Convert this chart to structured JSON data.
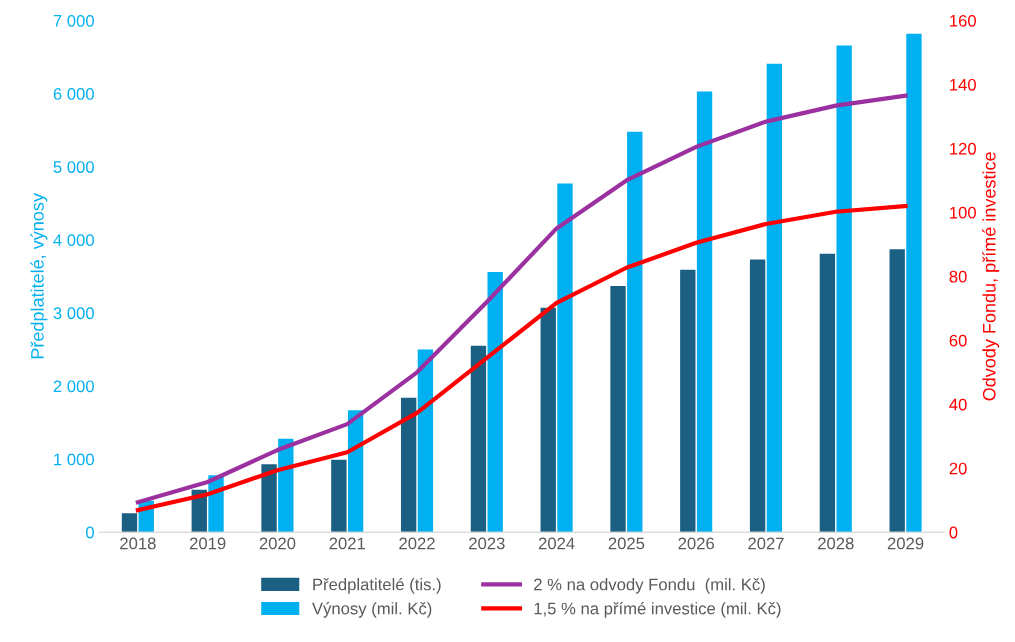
{
  "chart_data": {
    "type": "bar",
    "categories": [
      "2018",
      "2019",
      "2020",
      "2021",
      "2022",
      "2023",
      "2024",
      "2025",
      "2026",
      "2027",
      "2028",
      "2029"
    ],
    "series": [
      {
        "name": "Předplatitelé (tis.)",
        "color": "#1b6083",
        "values": [
          260,
          580,
          930,
          990,
          1840,
          2550,
          3070,
          3370,
          3590,
          3730,
          3810,
          3870
        ]
      },
      {
        "name": "Výnosy (mil. Kč)",
        "color": "#00b0f0",
        "values": [
          430,
          780,
          1280,
          1670,
          2500,
          3560,
          4770,
          5480,
          6030,
          6410,
          6660,
          6820
        ]
      },
      {
        "name": "2 % na odvody Fondu  (mil. Kč)",
        "type": "line",
        "axis": "y2",
        "color": "#9b30a0",
        "values": [
          9.4,
          15.7,
          25.7,
          33.8,
          50,
          72,
          95,
          110,
          120.5,
          128.4,
          133.4,
          136.5
        ]
      },
      {
        "name": "1,5 % na přímé investice (mil. Kč)",
        "type": "line",
        "axis": "y2",
        "color": "#ff0000",
        "values": [
          6.9,
          11.9,
          19.4,
          25,
          37.3,
          54.5,
          71.7,
          82.7,
          90.5,
          96.4,
          100.2,
          102
        ]
      }
    ],
    "ylabel": "Předplatitelé, výnosy",
    "y2label": "Odvody Fondu, přímé investice",
    "ylim": [
      0,
      7000
    ],
    "yticks": [
      0,
      {
        "value": 1000,
        "label": "1 000"
      },
      {
        "value": 2000,
        "label": "2 000"
      },
      {
        "value": 3000,
        "label": "3 000"
      },
      {
        "value": 4000,
        "label": "4 000"
      },
      {
        "value": 5000,
        "label": "5 000"
      },
      {
        "value": 6000,
        "label": "6 000"
      },
      {
        "value": 7000,
        "label": "7 000"
      }
    ],
    "y2lim": [
      0,
      160
    ],
    "y2ticks": [
      0,
      20,
      40,
      60,
      80,
      100,
      120,
      140,
      160
    ],
    "grid": false,
    "legend": "bottom",
    "marker": "none",
    "line_style": "solid"
  }
}
